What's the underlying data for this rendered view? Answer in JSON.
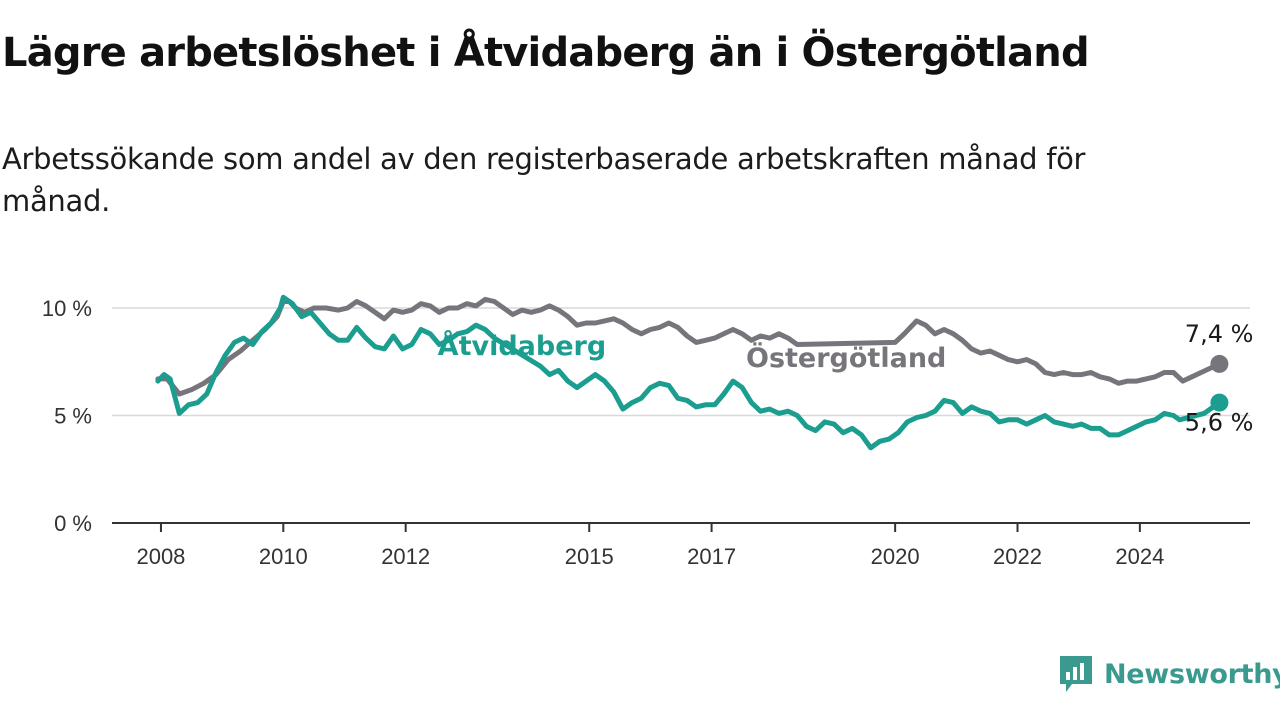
{
  "title": "Lägre arbetslöshet i Åtvidaberg än i Östergötland",
  "subtitle": "Arbetssökande som andel av den registerbaserade arbetskraften månad för månad.",
  "brand": "Newsworthy",
  "colors": {
    "atvidaberg": "#1b9e8f",
    "ostergotland": "#77757b",
    "brand": "#3a9a8f"
  },
  "chart_data": {
    "type": "line",
    "y_ticks": [
      {
        "value": 0,
        "label": "0 %"
      },
      {
        "value": 5,
        "label": "5 %"
      },
      {
        "value": 10,
        "label": "10 %"
      }
    ],
    "x_ticks": [
      {
        "value": 2008,
        "label": "2008"
      },
      {
        "value": 2010,
        "label": "2010"
      },
      {
        "value": 2012,
        "label": "2012"
      },
      {
        "value": 2015,
        "label": "2015"
      },
      {
        "value": 2017,
        "label": "2017"
      },
      {
        "value": 2020,
        "label": "2020"
      },
      {
        "value": 2022,
        "label": "2022"
      },
      {
        "value": 2024,
        "label": "2024"
      }
    ],
    "xlim": [
      2007.2,
      2025.8
    ],
    "ylim": [
      0,
      10.6
    ],
    "grid": true,
    "series": [
      {
        "key": "ostergotland",
        "name": "Östergötland",
        "color": "#77757b",
        "end_label": "7,4 %",
        "points": [
          [
            2007.95,
            6.7
          ],
          [
            2008.1,
            6.7
          ],
          [
            2008.3,
            6.0
          ],
          [
            2008.5,
            6.2
          ],
          [
            2008.7,
            6.5
          ],
          [
            2008.9,
            6.9
          ],
          [
            2009.1,
            7.6
          ],
          [
            2009.3,
            8.0
          ],
          [
            2009.5,
            8.5
          ],
          [
            2009.7,
            9.0
          ],
          [
            2009.9,
            9.6
          ],
          [
            2010.0,
            10.3
          ],
          [
            2010.1,
            10.3
          ],
          [
            2010.2,
            10.0
          ],
          [
            2010.35,
            9.8
          ],
          [
            2010.5,
            10.0
          ],
          [
            2010.7,
            10.0
          ],
          [
            2010.9,
            9.9
          ],
          [
            2011.05,
            10.0
          ],
          [
            2011.2,
            10.3
          ],
          [
            2011.35,
            10.1
          ],
          [
            2011.5,
            9.8
          ],
          [
            2011.65,
            9.5
          ],
          [
            2011.8,
            9.9
          ],
          [
            2011.95,
            9.8
          ],
          [
            2012.1,
            9.9
          ],
          [
            2012.25,
            10.2
          ],
          [
            2012.4,
            10.1
          ],
          [
            2012.55,
            9.8
          ],
          [
            2012.7,
            10.0
          ],
          [
            2012.85,
            10.0
          ],
          [
            2013.0,
            10.2
          ],
          [
            2013.15,
            10.1
          ],
          [
            2013.3,
            10.4
          ],
          [
            2013.45,
            10.3
          ],
          [
            2013.6,
            10.0
          ],
          [
            2013.75,
            9.7
          ],
          [
            2013.9,
            9.9
          ],
          [
            2014.05,
            9.8
          ],
          [
            2014.2,
            9.9
          ],
          [
            2014.35,
            10.1
          ],
          [
            2014.5,
            9.9
          ],
          [
            2014.65,
            9.6
          ],
          [
            2014.8,
            9.2
          ],
          [
            2014.95,
            9.3
          ],
          [
            2015.1,
            9.3
          ],
          [
            2015.25,
            9.4
          ],
          [
            2015.4,
            9.5
          ],
          [
            2015.55,
            9.3
          ],
          [
            2015.7,
            9.0
          ],
          [
            2015.85,
            8.8
          ],
          [
            2016.0,
            9.0
          ],
          [
            2016.15,
            9.1
          ],
          [
            2016.3,
            9.3
          ],
          [
            2016.45,
            9.1
          ],
          [
            2016.6,
            8.7
          ],
          [
            2016.75,
            8.4
          ],
          [
            2016.9,
            8.5
          ],
          [
            2017.05,
            8.6
          ],
          [
            2017.2,
            8.8
          ],
          [
            2017.35,
            9.0
          ],
          [
            2017.5,
            8.8
          ],
          [
            2017.65,
            8.5
          ],
          [
            2017.8,
            8.7
          ],
          [
            2017.95,
            8.6
          ],
          [
            2018.1,
            8.8
          ],
          [
            2018.25,
            8.6
          ],
          [
            2018.4,
            8.3
          ],
          [
            2020.0,
            8.4
          ],
          [
            2020.15,
            8.8
          ],
          [
            2020.35,
            9.4
          ],
          [
            2020.5,
            9.2
          ],
          [
            2020.65,
            8.8
          ],
          [
            2020.8,
            9.0
          ],
          [
            2020.95,
            8.8
          ],
          [
            2021.1,
            8.5
          ],
          [
            2021.25,
            8.1
          ],
          [
            2021.4,
            7.9
          ],
          [
            2021.55,
            8.0
          ],
          [
            2021.7,
            7.8
          ],
          [
            2021.85,
            7.6
          ],
          [
            2022.0,
            7.5
          ],
          [
            2022.15,
            7.6
          ],
          [
            2022.3,
            7.4
          ],
          [
            2022.45,
            7.0
          ],
          [
            2022.6,
            6.9
          ],
          [
            2022.75,
            7.0
          ],
          [
            2022.9,
            6.9
          ],
          [
            2023.05,
            6.9
          ],
          [
            2023.2,
            7.0
          ],
          [
            2023.35,
            6.8
          ],
          [
            2023.5,
            6.7
          ],
          [
            2023.65,
            6.5
          ],
          [
            2023.8,
            6.6
          ],
          [
            2023.95,
            6.6
          ],
          [
            2024.1,
            6.7
          ],
          [
            2024.25,
            6.8
          ],
          [
            2024.4,
            7.0
          ],
          [
            2024.55,
            7.0
          ],
          [
            2024.7,
            6.6
          ],
          [
            2024.85,
            6.8
          ],
          [
            2025.0,
            7.0
          ],
          [
            2025.15,
            7.2
          ],
          [
            2025.3,
            7.4
          ]
        ]
      },
      {
        "key": "atvidaberg",
        "name": "Åtvidaberg",
        "color": "#1b9e8f",
        "end_label": "5,6 %",
        "points": [
          [
            2007.95,
            6.6
          ],
          [
            2008.05,
            6.9
          ],
          [
            2008.15,
            6.7
          ],
          [
            2008.3,
            5.1
          ],
          [
            2008.45,
            5.5
          ],
          [
            2008.6,
            5.6
          ],
          [
            2008.75,
            6.0
          ],
          [
            2008.9,
            7.0
          ],
          [
            2009.05,
            7.8
          ],
          [
            2009.2,
            8.4
          ],
          [
            2009.35,
            8.6
          ],
          [
            2009.5,
            8.3
          ],
          [
            2009.65,
            8.9
          ],
          [
            2009.8,
            9.3
          ],
          [
            2009.95,
            10.0
          ],
          [
            2010.0,
            10.5
          ],
          [
            2010.15,
            10.2
          ],
          [
            2010.3,
            9.6
          ],
          [
            2010.45,
            9.8
          ],
          [
            2010.6,
            9.3
          ],
          [
            2010.75,
            8.8
          ],
          [
            2010.9,
            8.5
          ],
          [
            2011.05,
            8.5
          ],
          [
            2011.2,
            9.1
          ],
          [
            2011.35,
            8.6
          ],
          [
            2011.5,
            8.2
          ],
          [
            2011.65,
            8.1
          ],
          [
            2011.8,
            8.7
          ],
          [
            2011.95,
            8.1
          ],
          [
            2012.1,
            8.3
          ],
          [
            2012.25,
            9.0
          ],
          [
            2012.4,
            8.8
          ],
          [
            2012.55,
            8.3
          ],
          [
            2012.7,
            8.5
          ],
          [
            2012.85,
            8.8
          ],
          [
            2013.0,
            8.9
          ],
          [
            2013.15,
            9.2
          ],
          [
            2013.3,
            9.0
          ],
          [
            2013.45,
            8.6
          ],
          [
            2014.2,
            7.3
          ],
          [
            2014.35,
            6.9
          ],
          [
            2014.5,
            7.1
          ],
          [
            2014.65,
            6.6
          ],
          [
            2014.8,
            6.3
          ],
          [
            2014.95,
            6.6
          ],
          [
            2015.1,
            6.9
          ],
          [
            2015.25,
            6.6
          ],
          [
            2015.4,
            6.1
          ],
          [
            2015.55,
            5.3
          ],
          [
            2015.7,
            5.6
          ],
          [
            2015.85,
            5.8
          ],
          [
            2016.0,
            6.3
          ],
          [
            2016.15,
            6.5
          ],
          [
            2016.3,
            6.4
          ],
          [
            2016.45,
            5.8
          ],
          [
            2016.6,
            5.7
          ],
          [
            2016.75,
            5.4
          ],
          [
            2016.9,
            5.5
          ],
          [
            2017.05,
            5.5
          ],
          [
            2017.2,
            6.0
          ],
          [
            2017.35,
            6.6
          ],
          [
            2017.5,
            6.3
          ],
          [
            2017.65,
            5.6
          ],
          [
            2017.8,
            5.2
          ],
          [
            2017.95,
            5.3
          ],
          [
            2018.1,
            5.1
          ],
          [
            2018.25,
            5.2
          ],
          [
            2018.4,
            5.0
          ],
          [
            2018.55,
            4.5
          ],
          [
            2018.7,
            4.3
          ],
          [
            2018.85,
            4.7
          ],
          [
            2019.0,
            4.6
          ],
          [
            2019.15,
            4.2
          ],
          [
            2019.3,
            4.4
          ],
          [
            2019.45,
            4.1
          ],
          [
            2019.6,
            3.5
          ],
          [
            2019.75,
            3.8
          ],
          [
            2019.9,
            3.9
          ],
          [
            2020.05,
            4.2
          ],
          [
            2020.2,
            4.7
          ],
          [
            2020.35,
            4.9
          ],
          [
            2020.5,
            5.0
          ],
          [
            2020.65,
            5.2
          ],
          [
            2020.8,
            5.7
          ],
          [
            2020.95,
            5.6
          ],
          [
            2021.1,
            5.1
          ],
          [
            2021.25,
            5.4
          ],
          [
            2021.4,
            5.2
          ],
          [
            2021.55,
            5.1
          ],
          [
            2021.7,
            4.7
          ],
          [
            2021.85,
            4.8
          ],
          [
            2022.0,
            4.8
          ],
          [
            2022.15,
            4.6
          ],
          [
            2022.3,
            4.8
          ],
          [
            2022.45,
            5.0
          ],
          [
            2022.6,
            4.7
          ],
          [
            2022.75,
            4.6
          ],
          [
            2022.9,
            4.5
          ],
          [
            2023.05,
            4.6
          ],
          [
            2023.2,
            4.4
          ],
          [
            2023.35,
            4.4
          ],
          [
            2023.5,
            4.1
          ],
          [
            2023.65,
            4.1
          ],
          [
            2023.8,
            4.3
          ],
          [
            2023.95,
            4.5
          ],
          [
            2024.1,
            4.7
          ],
          [
            2024.25,
            4.8
          ],
          [
            2024.4,
            5.1
          ],
          [
            2024.55,
            5.0
          ],
          [
            2024.65,
            4.8
          ],
          [
            2025.05,
            5.1
          ],
          [
            2025.3,
            5.6
          ]
        ]
      }
    ],
    "annotations": [
      {
        "series": "atvidaberg",
        "text": "Åtvidaberg"
      },
      {
        "series": "ostergotland",
        "text": "Östergötland"
      }
    ]
  }
}
